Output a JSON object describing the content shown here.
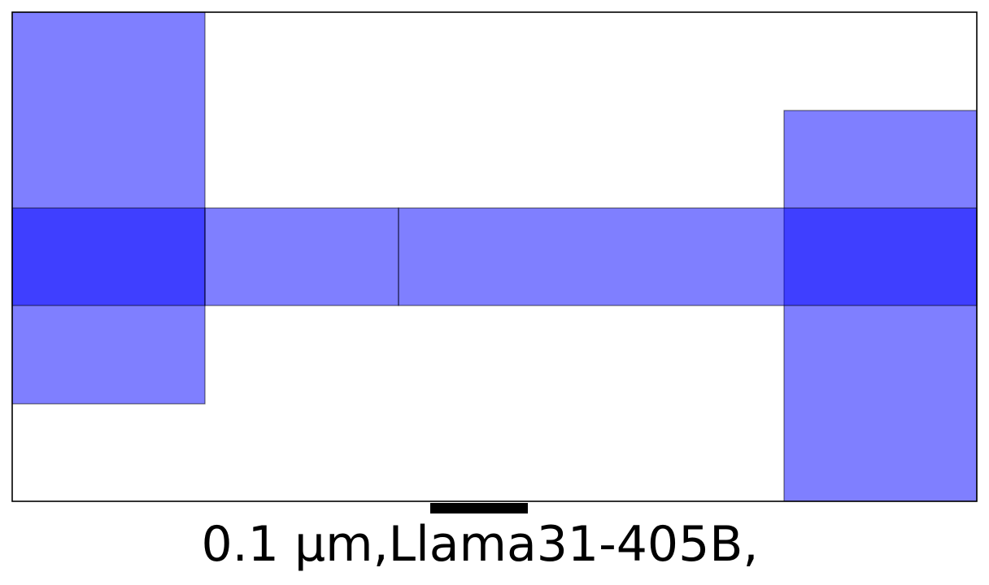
{
  "figure": {
    "caption": "0.1 µm,Llama31-405B,",
    "fill_color": "#0000ff",
    "fill_opacity": 0.5,
    "outline_color": "#000000",
    "scale_bar": {
      "label": "0.1 µm",
      "color": "#000000"
    },
    "rectangles": [
      {
        "name": "left-tall-block"
      },
      {
        "name": "right-tall-block"
      },
      {
        "name": "horizontal-bar-left"
      },
      {
        "name": "horizontal-bar-middle"
      },
      {
        "name": "horizontal-bar-right"
      }
    ]
  }
}
